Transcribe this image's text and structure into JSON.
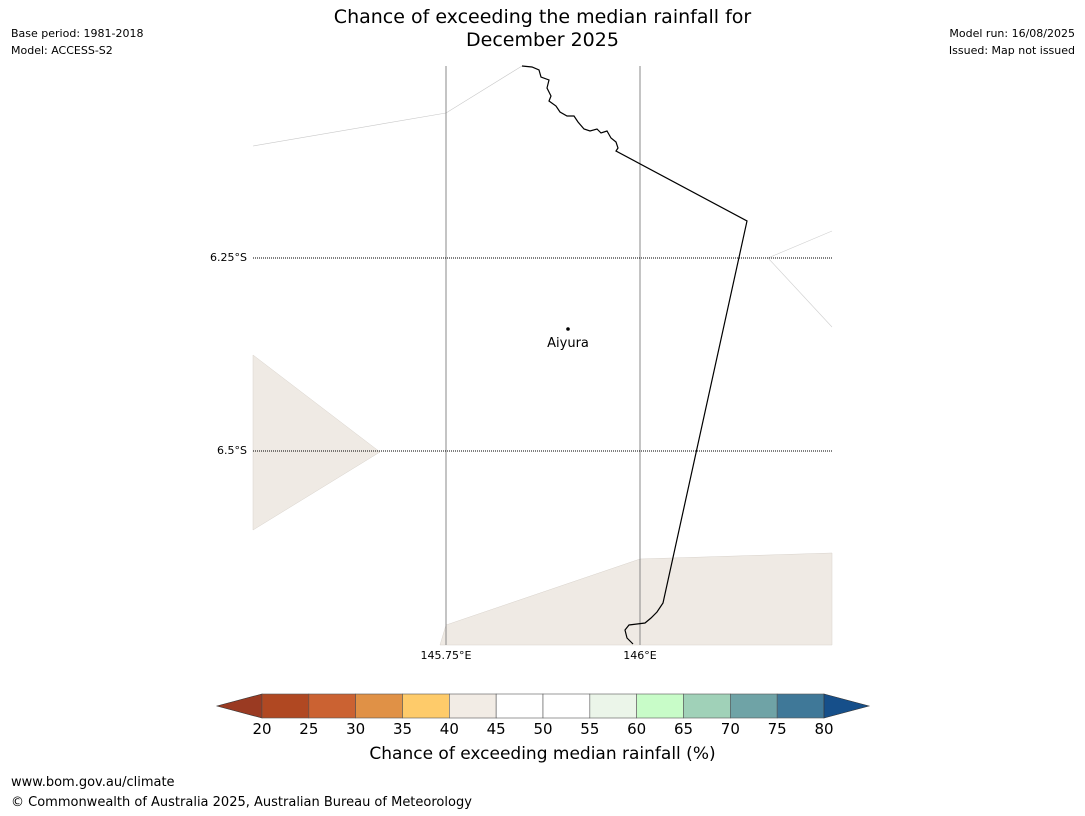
{
  "header": {
    "title_line1": "Chance of exceeding the median rainfall for",
    "title_line2": "December 2025",
    "base_period": "Base period: 1981-2018",
    "model": "Model: ACCESS-S2",
    "model_run": "Model run: 16/08/2025",
    "issued": "Issued: Map not issued"
  },
  "map": {
    "lat_labels": [
      "6.25°S",
      "6.5°S"
    ],
    "lon_labels": [
      "145.75°E",
      "146°E"
    ],
    "place": {
      "name": "Aiyura"
    },
    "colors": {
      "land_fill": "#efeae4",
      "coastline": "#000000",
      "gridline": "#000000"
    }
  },
  "colorbar": {
    "label": "Chance of exceeding median rainfall (%)",
    "ticks": [
      "20",
      "25",
      "30",
      "35",
      "40",
      "45",
      "50",
      "55",
      "60",
      "65",
      "70",
      "75",
      "80"
    ],
    "under_color": "#9a3a22",
    "over_color": "#164f8a",
    "colors": [
      "#b04822",
      "#cb6232",
      "#e09146",
      "#fecb6a",
      "#f2ece5",
      "#ffffff",
      "#ffffff",
      "#ebf5e9",
      "#c8fcc8",
      "#a0d1b8",
      "#6fa3a6",
      "#3f7898"
    ]
  },
  "footer": {
    "website": "www.bom.gov.au/climate",
    "copyright": "© Commonwealth of Australia 2025, Australian Bureau of Meteorology"
  }
}
